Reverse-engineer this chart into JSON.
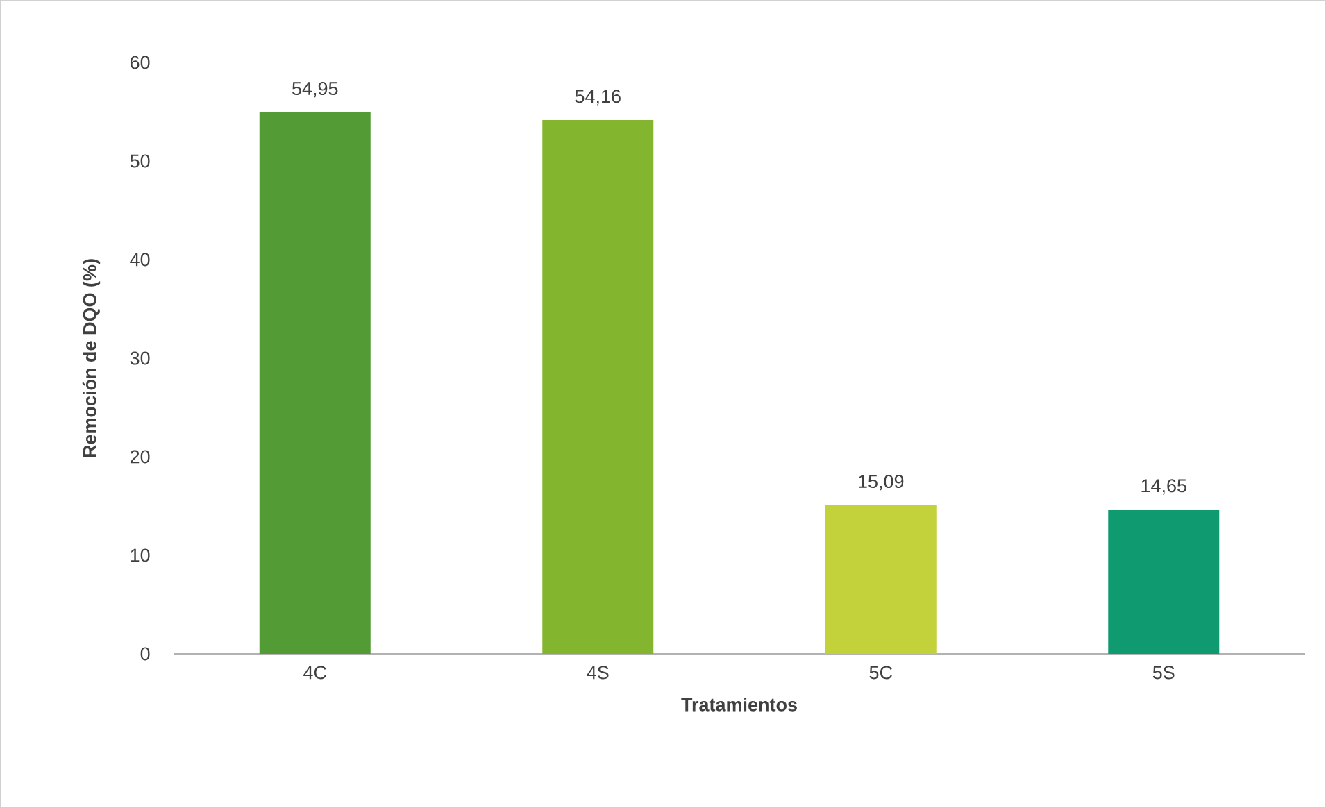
{
  "chart_data": {
    "type": "bar",
    "xlabel": "Tratamientos",
    "ylabel": "Remoción de DQO (%)",
    "categories": [
      "4C",
      "4S",
      "5C",
      "5S"
    ],
    "values": [
      54.95,
      54.16,
      15.09,
      14.65
    ],
    "value_labels": [
      "54,95",
      "54,16",
      "15,09",
      "14,65"
    ],
    "colors": [
      "#529b35",
      "#84b52f",
      "#c3d23b",
      "#0f9a70"
    ],
    "ylim": [
      0,
      60
    ],
    "yticks": [
      0,
      10,
      20,
      30,
      40,
      50,
      60
    ]
  }
}
